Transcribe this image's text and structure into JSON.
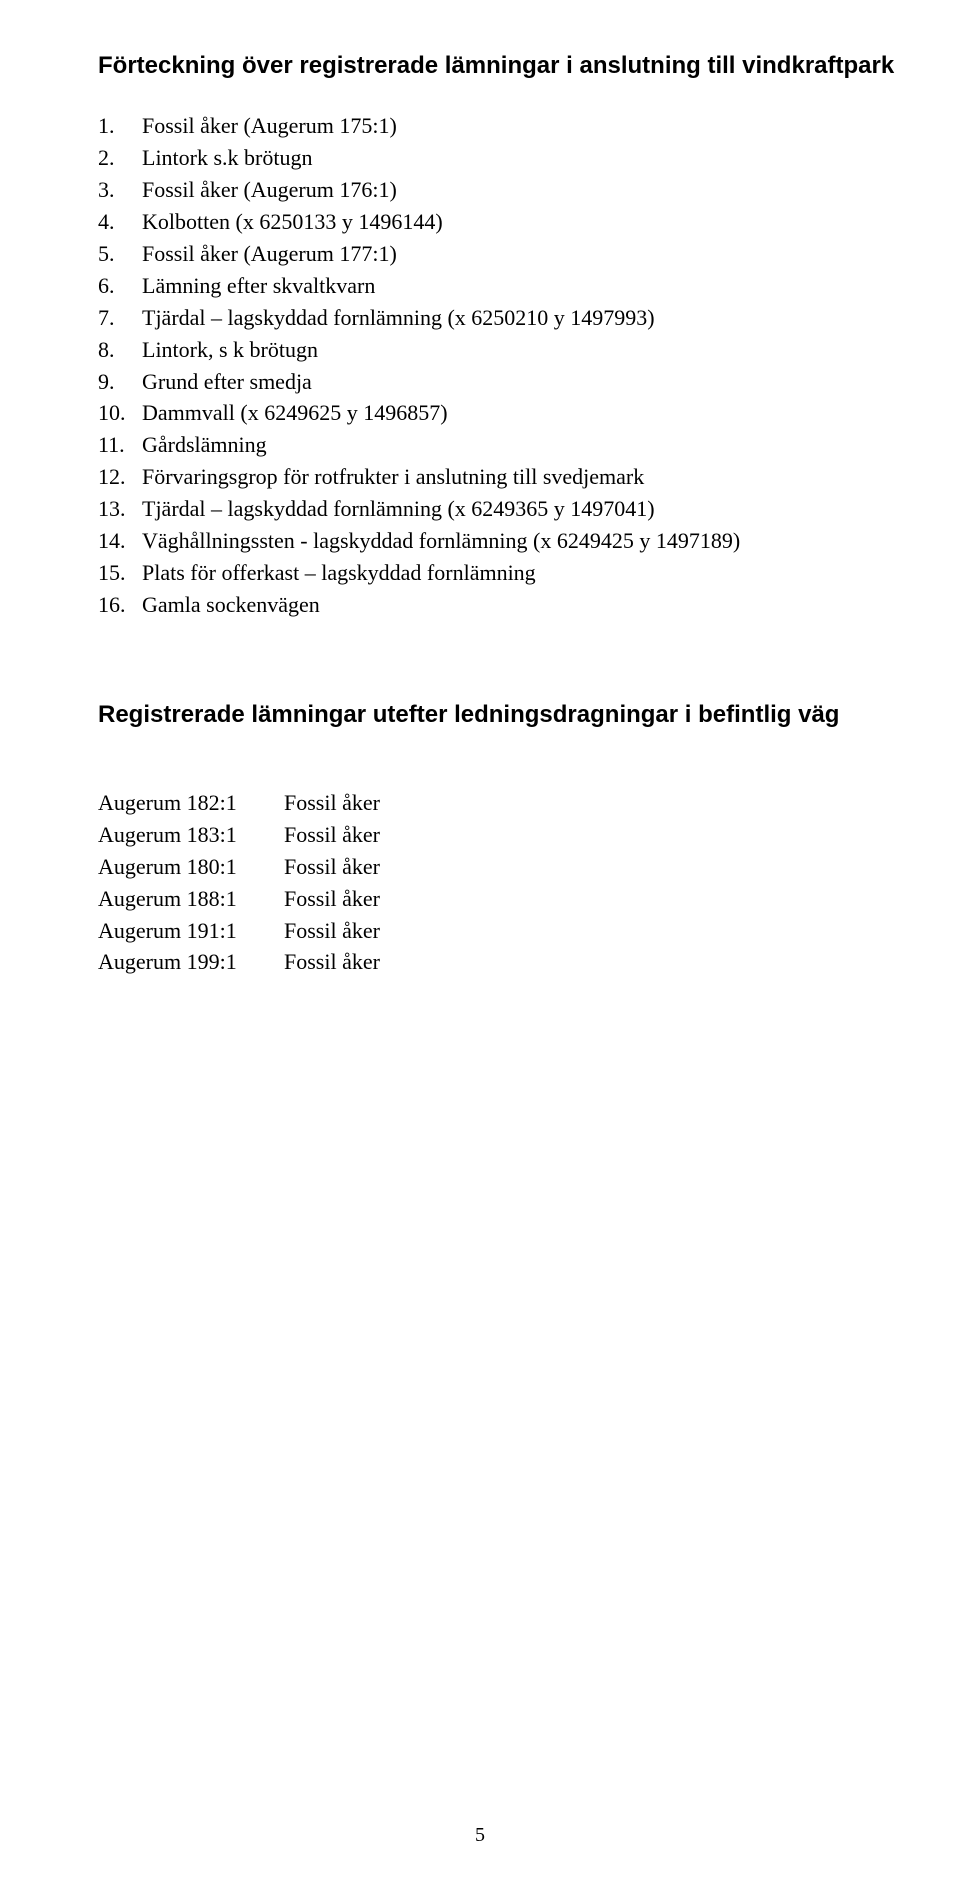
{
  "section1": {
    "heading": "Förteckning över registrerade lämningar i anslutning till vindkraftpark",
    "items": [
      "Fossil åker (Augerum 175:1)",
      "Lintork s.k brötugn",
      "Fossil åker (Augerum 176:1)",
      "Kolbotten (x 6250133  y 1496144)",
      "Fossil åker (Augerum 177:1)",
      "Lämning efter skvaltkvarn",
      "Tjärdal – lagskyddad fornlämning (x 6250210  y 1497993)",
      "Lintork, s k brötugn",
      "Grund efter smedja",
      "Dammvall (x 6249625  y 1496857)",
      "Gårdslämning",
      "Förvaringsgrop för rotfrukter i anslutning till svedjemark",
      "Tjärdal – lagskyddad fornlämning (x 6249365  y 1497041)",
      "Väghållningssten - lagskyddad fornlämning (x 6249425  y 1497189)",
      "Plats för offerkast – lagskyddad fornlämning",
      "Gamla sockenvägen"
    ]
  },
  "section2": {
    "heading": "Registrerade lämningar utefter ledningsdragningar i befintlig väg",
    "rows": [
      {
        "c1": "Augerum 182:1",
        "c2": "Fossil åker"
      },
      {
        "c1": "Augerum 183:1",
        "c2": "Fossil åker"
      },
      {
        "c1": "Augerum 180:1",
        "c2": "Fossil åker"
      },
      {
        "c1": "Augerum 188:1",
        "c2": "Fossil åker"
      },
      {
        "c1": "Augerum 191:1",
        "c2": "Fossil åker"
      },
      {
        "c1": "Augerum 199:1",
        "c2": "Fossil åker"
      }
    ]
  },
  "pageNumber": "5"
}
